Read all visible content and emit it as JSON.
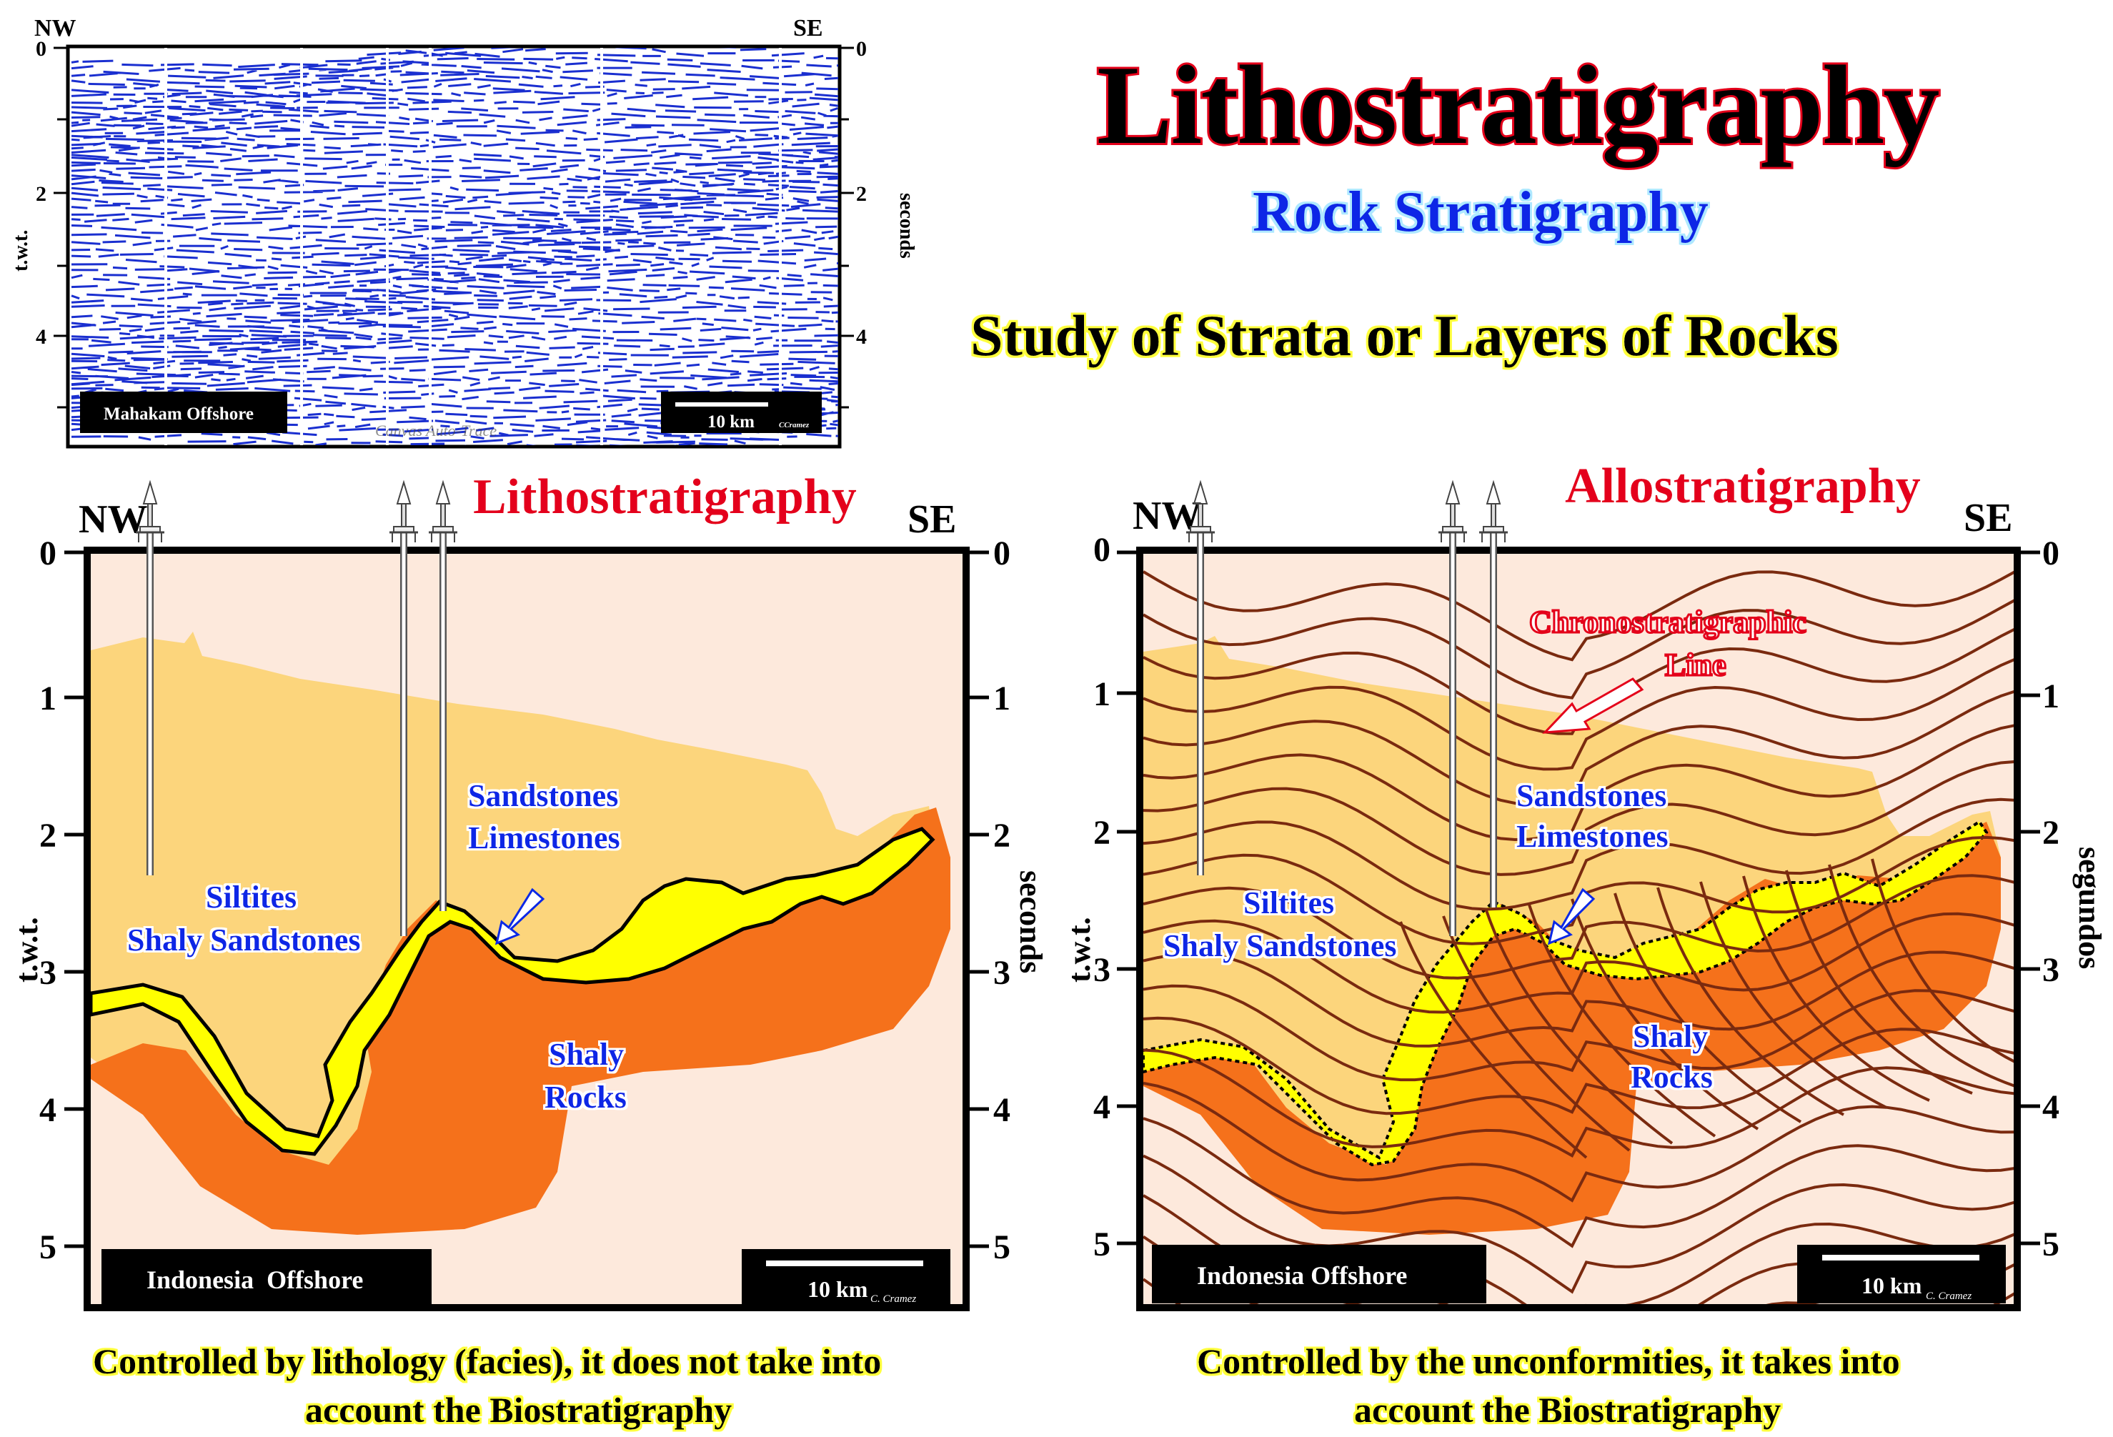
{
  "title": "Lithostratigraphy",
  "subtitle": "Rock Stratigraphy",
  "definition": "Study of Strata or Layers of Rocks",
  "seismic": {
    "nw": "NW",
    "se": "SE",
    "y_label_left": "t.w.t.",
    "y_label_right": "seconds",
    "ticks_left": [
      "0",
      "2",
      "4"
    ],
    "ticks_right": [
      "0",
      "2",
      "4"
    ],
    "location": "Mahakam Offshore",
    "scale": "10 km",
    "credit": "CCramez",
    "watermark": "Canvas Auto-Trace"
  },
  "left_panel": {
    "title": "Lithostratigraphy",
    "nw": "NW",
    "se": "SE",
    "y_label_left": "t.w.t.",
    "y_label_right": "seconds",
    "ticks_left": [
      "0",
      "1",
      "2",
      "3",
      "4",
      "5"
    ],
    "ticks_right": [
      "0",
      "1",
      "2",
      "3",
      "4",
      "5"
    ],
    "label_siltites": "Siltites",
    "label_shaly_sandstones": "Shaly Sandstones",
    "label_sandstones": "Sandstones",
    "label_limestones": "Limestones",
    "label_shaly": "Shaly",
    "label_rocks": "Rocks",
    "location": "Indonesia  Offshore",
    "scale": "10 km",
    "credit": "C. Cramez",
    "caption_line1": "Controlled by lithology (facies), it does not take into",
    "caption_line2": "account the Biostratigraphy"
  },
  "right_panel": {
    "title": "Allostratigraphy",
    "nw": "NW",
    "se": "SE",
    "y_label_left": "t.w.t.",
    "y_label_right": "segundos",
    "ticks_left": [
      "0",
      "1",
      "2",
      "3",
      "4",
      "5"
    ],
    "ticks_right": [
      "0",
      "1",
      "2",
      "3",
      "4",
      "5"
    ],
    "chrono_line1": "Chronostratigraphic",
    "chrono_line2": "Line",
    "label_siltites": "Siltites",
    "label_shaly_sandstones": "Shaly Sandstones",
    "label_sandstones": "Sandstones",
    "label_limestones": "Limestones",
    "label_shaly": "Shaly",
    "label_rocks": "Rocks",
    "location": "Indonesia Offshore",
    "scale": "10 km",
    "credit": "C. Cramez",
    "caption_line1": "Controlled by the unconformities, it takes into",
    "caption_line2": "account the Biostratigraphy"
  },
  "colors": {
    "background_panel": "#fde9dc",
    "sand_unit": "#fcd57c",
    "shaly_rocks": "#f5711b",
    "limestone_band": "#ffff00",
    "chrono_lines": "#7a2a0f",
    "seismic_trace": "#1a2fd0",
    "title_red": "#e4001a",
    "label_blue": "#0a28e6"
  }
}
